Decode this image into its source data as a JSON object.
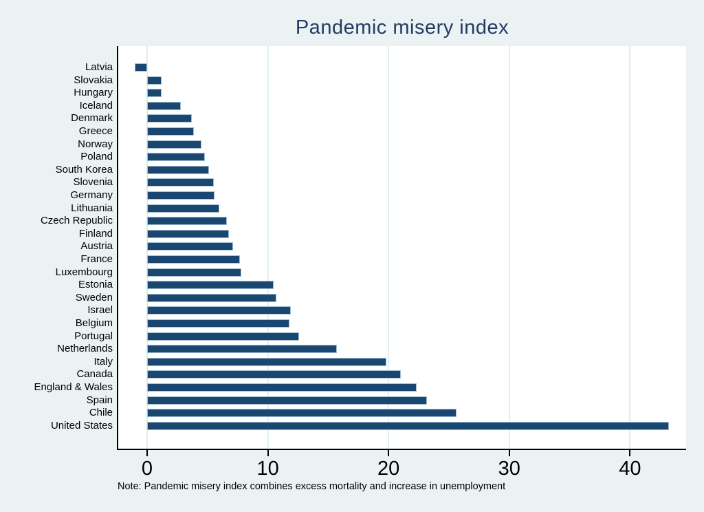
{
  "title": "Pandemic misery index",
  "note": "Note: Pandemic misery index combines excess mortality and increase in unemployment",
  "chart_data": {
    "type": "bar",
    "orientation": "horizontal",
    "title": "Pandemic misery index",
    "xlabel": "",
    "ylabel": "",
    "categories": [
      "Latvia",
      "Slovakia",
      "Hungary",
      "Iceland",
      "Denmark",
      "Greece",
      "Norway",
      "Poland",
      "South Korea",
      "Slovenia",
      "Germany",
      "Lithuania",
      "Czech Republic",
      "Finland",
      "Austria",
      "France",
      "Luxembourg",
      "Estonia",
      "Sweden",
      "Israel",
      "Belgium",
      "Portugal",
      "Netherlands",
      "Italy",
      "Canada",
      "England & Wales",
      "Spain",
      "Chile",
      "United States"
    ],
    "values": [
      -1.0,
      1.2,
      1.2,
      2.8,
      3.7,
      3.9,
      4.5,
      4.8,
      5.1,
      5.5,
      5.6,
      6.0,
      6.6,
      6.8,
      7.1,
      7.7,
      7.8,
      10.5,
      10.7,
      11.9,
      11.8,
      12.6,
      15.7,
      19.8,
      21.0,
      22.3,
      23.2,
      25.6,
      43.2
    ],
    "x_ticks": [
      0,
      10,
      20,
      30,
      40
    ],
    "xlim": [
      -2.4,
      44.6
    ],
    "grid": true,
    "legend": "none",
    "annotation": "Note: Pandemic misery index combines excess mortality and increase in unemployment",
    "colors": {
      "background": "#EAF2F3",
      "plot_background": "#FFFFFF",
      "bar_fill": "#1A476F",
      "bar_outline": "#9FBDD1",
      "gridline": "#E0EDF1",
      "title_text": "#263A63",
      "axis_line": "#000000",
      "label_text": "#000000"
    }
  }
}
